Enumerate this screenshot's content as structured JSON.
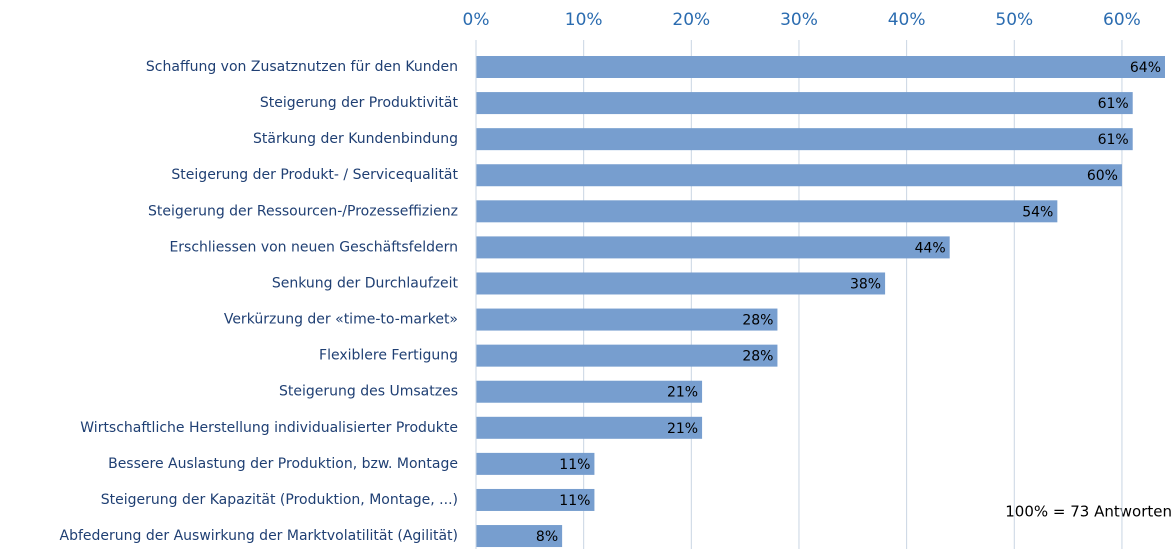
{
  "chart_data": {
    "type": "barh",
    "categories": [
      "Schaffung von Zusatznutzen für den Kunden",
      "Steigerung der Produktivität",
      "Stärkung der Kundenbindung",
      "Steigerung der Produkt- / Servicequalität",
      "Steigerung der Ressourcen-/Prozesseffizienz",
      "Erschliessen von neuen Geschäftsfeldern",
      "Senkung der Durchlaufzeit",
      "Verkürzung der «time-to-market»",
      "Flexiblere Fertigung",
      "Steigerung des Umsatzes",
      "Wirtschaftliche Herstellung individualisierter Produkte",
      "Bessere Auslastung der Produktion, bzw. Montage",
      "Steigerung der Kapazität (Produktion, Montage, ...)",
      "Abfederung der Auswirkung der Marktvolatilität (Agilität)"
    ],
    "values": [
      64,
      61,
      61,
      60,
      54,
      44,
      38,
      28,
      28,
      21,
      21,
      11,
      11,
      8
    ],
    "value_labels": [
      "64%",
      "61%",
      "61%",
      "60%",
      "54%",
      "44%",
      "38%",
      "28%",
      "28%",
      "21%",
      "21%",
      "11%",
      "11%",
      "8%"
    ],
    "color": "#779ecf",
    "xlim": [
      0,
      64
    ],
    "xticks": [
      {
        "value": 0,
        "label": "0%"
      },
      {
        "value": 10,
        "label": "10%"
      },
      {
        "value": 20,
        "label": "20%"
      },
      {
        "value": 30,
        "label": "30%"
      },
      {
        "value": 40,
        "label": "40%"
      },
      {
        "value": 50,
        "label": "50%"
      },
      {
        "value": 60,
        "label": "60%"
      }
    ],
    "grid": true,
    "annotation": "100% = 73 Antworten"
  }
}
